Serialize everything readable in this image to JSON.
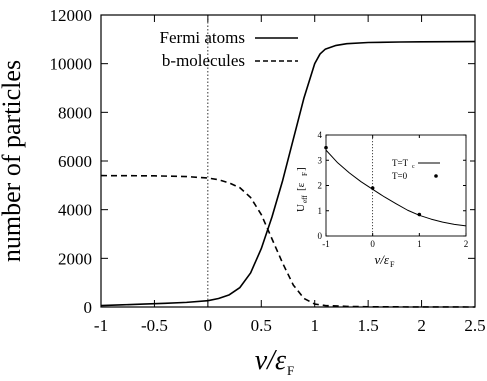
{
  "chart_data": [
    {
      "type": "line",
      "xlabel": "ν/ε",
      "xlabel_sub": "F",
      "ylabel": "number of particles",
      "xlim": [
        -1,
        2.5
      ],
      "ylim": [
        0,
        12000
      ],
      "x_ticks": [
        -1,
        -0.5,
        0,
        0.5,
        1,
        1.5,
        2,
        2.5
      ],
      "x_tick_labels": [
        "-1",
        "-0.5",
        "0",
        "0.5",
        "1",
        "1.5",
        "2",
        "2.5"
      ],
      "y_ticks": [
        0,
        2000,
        4000,
        6000,
        8000,
        10000,
        12000
      ],
      "y_tick_labels": [
        "0",
        "2000",
        "4000",
        "6000",
        "8000",
        "10000",
        "12000"
      ],
      "vertical_reference_x": 0,
      "legend": "top-left",
      "series": [
        {
          "name": "Fermi atoms",
          "style": "solid",
          "points": [
            [
              -1,
              60
            ],
            [
              -0.8,
              90
            ],
            [
              -0.6,
              120
            ],
            [
              -0.4,
              150
            ],
            [
              -0.2,
              190
            ],
            [
              0,
              260
            ],
            [
              0.1,
              350
            ],
            [
              0.2,
              500
            ],
            [
              0.3,
              800
            ],
            [
              0.4,
              1400
            ],
            [
              0.5,
              2400
            ],
            [
              0.6,
              3700
            ],
            [
              0.7,
              5200
            ],
            [
              0.8,
              6900
            ],
            [
              0.9,
              8600
            ],
            [
              1.0,
              10000
            ],
            [
              1.05,
              10400
            ],
            [
              1.1,
              10600
            ],
            [
              1.2,
              10750
            ],
            [
              1.3,
              10820
            ],
            [
              1.5,
              10870
            ],
            [
              1.8,
              10890
            ],
            [
              2.0,
              10900
            ],
            [
              2.5,
              10910
            ]
          ]
        },
        {
          "name": "b-molecules",
          "style": "dashed",
          "points": [
            [
              -1,
              5400
            ],
            [
              -0.5,
              5390
            ],
            [
              -0.2,
              5360
            ],
            [
              0,
              5300
            ],
            [
              0.1,
              5230
            ],
            [
              0.2,
              5100
            ],
            [
              0.3,
              4900
            ],
            [
              0.4,
              4500
            ],
            [
              0.5,
              3800
            ],
            [
              0.6,
              2800
            ],
            [
              0.7,
              1800
            ],
            [
              0.8,
              900
            ],
            [
              0.9,
              350
            ],
            [
              1.0,
              120
            ],
            [
              1.1,
              60
            ],
            [
              1.3,
              25
            ],
            [
              1.5,
              10
            ],
            [
              2.0,
              3
            ],
            [
              2.5,
              0
            ]
          ]
        }
      ]
    },
    {
      "type": "line",
      "inset": true,
      "ylabel": "U",
      "ylabel_sub": "eff",
      "ylabel_tail": "[ε",
      "ylabel_tail_sub": "F",
      "ylabel_close": "]",
      "xlabel": "ν/ε",
      "xlabel_sub": "F",
      "xlim": [
        -1,
        2
      ],
      "ylim": [
        0,
        4
      ],
      "x_ticks": [
        -1,
        0,
        1,
        2
      ],
      "x_tick_labels": [
        "-1",
        "0",
        "1",
        "2"
      ],
      "y_ticks": [
        0,
        1,
        2,
        3,
        4
      ],
      "y_tick_labels": [
        "0",
        "1",
        "2",
        "3",
        "4"
      ],
      "vertical_reference_x": 0,
      "legend": "top-right",
      "series": [
        {
          "name": "T=T",
          "name_sub": "c",
          "style": "line",
          "points": [
            [
              -1,
              3.4
            ],
            [
              -0.75,
              2.9
            ],
            [
              -0.5,
              2.5
            ],
            [
              -0.25,
              2.15
            ],
            [
              0,
              1.85
            ],
            [
              0.25,
              1.55
            ],
            [
              0.5,
              1.28
            ],
            [
              0.75,
              1.02
            ],
            [
              1.0,
              0.82
            ],
            [
              1.25,
              0.67
            ],
            [
              1.5,
              0.55
            ],
            [
              1.75,
              0.46
            ],
            [
              2.0,
              0.4
            ]
          ]
        },
        {
          "name": "T=0",
          "style": "points",
          "points": [
            [
              -1,
              3.5
            ],
            [
              0,
              1.9
            ],
            [
              1,
              0.85
            ]
          ]
        }
      ]
    }
  ]
}
